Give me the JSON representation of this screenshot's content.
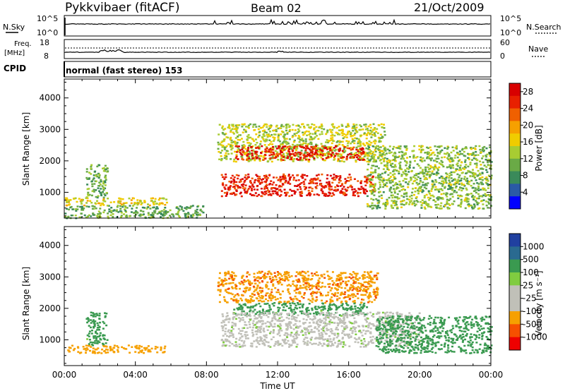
{
  "header": {
    "station": "Pykkvibaer (fitACF)",
    "beam": "Beam 02",
    "date": "21/Oct/2009"
  },
  "strips": {
    "nsky": {
      "label": "N.Sky",
      "top": "10^5",
      "bottom": "10^0"
    },
    "nsearch": {
      "label": "N.Search",
      "top": "10^5",
      "bottom": "10^0"
    },
    "freq": {
      "label_top": "Freq.",
      "label_unit": "[MHz]",
      "top": "18",
      "bottom": "8"
    },
    "nave": {
      "label": "Nave",
      "top": "60",
      "bottom": "0"
    },
    "cpid": {
      "label": "CPID",
      "text": "normal (fast stereo) 153"
    }
  },
  "colors": {
    "power": [
      "#0000ff",
      "#2a5aa6",
      "#3a8a5a",
      "#6aaa46",
      "#a8cc32",
      "#f0cc00",
      "#f6a000",
      "#f06000",
      "#e82000",
      "#d80000"
    ],
    "velocity": [
      "#ee0000",
      "#f65000",
      "#f6a000",
      "#c0c0b8",
      "#c0c0b8",
      "#80cc40",
      "#3a9a50",
      "#2a6a90",
      "#2040a0"
    ]
  },
  "chart_data": [
    {
      "type": "heatmap",
      "panel": "power",
      "ylabel": "Slant Range [km]",
      "yticks": [
        1000,
        2000,
        3000,
        4000
      ],
      "ylim": [
        180,
        4600
      ],
      "xlim": [
        0,
        24
      ],
      "colorbar": {
        "label": "Power [dB]",
        "ticks": [
          4,
          8,
          12,
          16,
          20,
          24,
          28
        ],
        "range": [
          0,
          30
        ]
      },
      "regions": [
        {
          "t0": 0.0,
          "t1": 7.8,
          "r0": 200,
          "r1": 600,
          "value": 10
        },
        {
          "t0": 0.0,
          "t1": 5.8,
          "r0": 600,
          "r1": 850,
          "value": 16
        },
        {
          "t0": 1.2,
          "t1": 2.4,
          "r0": 850,
          "r1": 1900,
          "value": 10
        },
        {
          "t0": 8.6,
          "t1": 18.0,
          "r0": 2000,
          "r1": 3200,
          "value": 14
        },
        {
          "t0": 9.6,
          "t1": 16.8,
          "r0": 2050,
          "r1": 2500,
          "value": 26
        },
        {
          "t0": 8.8,
          "t1": 17.4,
          "r0": 900,
          "r1": 1600,
          "value": 26
        },
        {
          "t0": 17.0,
          "t1": 24.0,
          "r0": 500,
          "r1": 2500,
          "value": 12
        }
      ]
    },
    {
      "type": "heatmap",
      "panel": "velocity",
      "ylabel": "Slant Range [km]",
      "yticks": [
        1000,
        2000,
        3000,
        4000
      ],
      "ylim": [
        180,
        4600
      ],
      "xlim": [
        0,
        24
      ],
      "colorbar": {
        "label": "Velocity [m s⁻¹]",
        "ticks": [
          "-1000",
          "-500",
          "-100",
          "-25",
          "25",
          "100",
          "500",
          "1000"
        ]
      },
      "regions": [
        {
          "t0": 0.0,
          "t1": 5.8,
          "r0": 600,
          "r1": 850,
          "value": -300
        },
        {
          "t0": 1.2,
          "t1": 2.4,
          "r0": 850,
          "r1": 1900,
          "value": 200
        },
        {
          "t0": 8.6,
          "t1": 17.6,
          "r0": 2200,
          "r1": 3200,
          "value": -400
        },
        {
          "t0": 9.5,
          "t1": 17.0,
          "r0": 1800,
          "r1": 2200,
          "value": 200
        },
        {
          "t0": 8.8,
          "t1": 20.0,
          "r0": 800,
          "r1": 1900,
          "value": 0
        },
        {
          "t0": 17.5,
          "t1": 24.0,
          "r0": 600,
          "r1": 1800,
          "value": 300
        }
      ]
    }
  ],
  "xaxis": {
    "label": "Time UT",
    "ticks": [
      "00:00",
      "04:00",
      "08:00",
      "12:00",
      "16:00",
      "20:00",
      "00:00"
    ]
  }
}
